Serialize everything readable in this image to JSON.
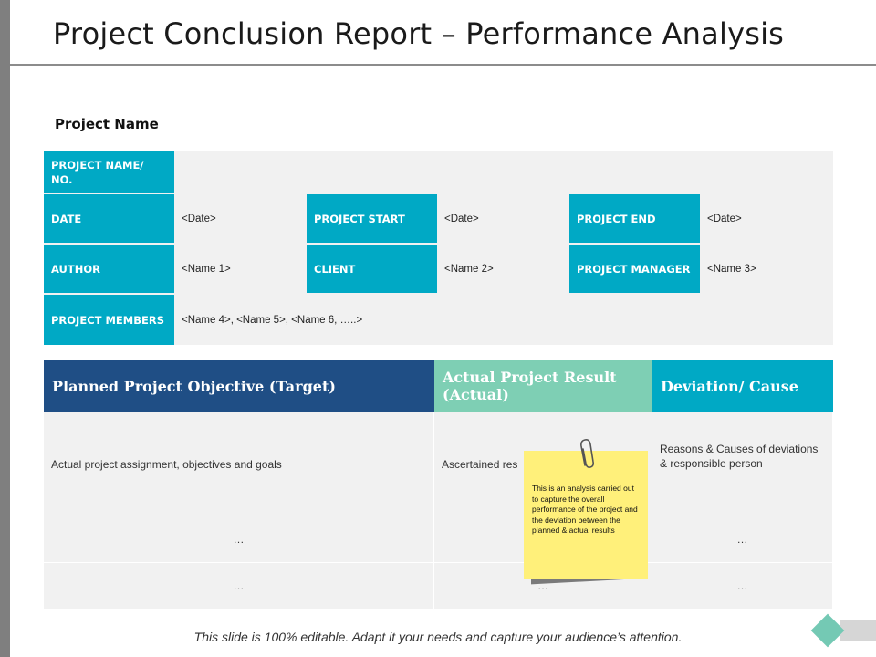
{
  "page": {
    "title": "Project Conclusion Report – Performance Analysis",
    "section_label": "Project Name",
    "footer": "This slide is 100% editable. Adapt it your needs and capture your audience’s attention."
  },
  "info": {
    "project_name_label": "PROJECT NAME/ NO.",
    "date_label": "DATE",
    "date_value": "<Date>",
    "project_start_label": "PROJECT START",
    "project_start_value": "<Date>",
    "project_end_label": "PROJECT END",
    "project_end_value": "<Date>",
    "author_label": "AUTHOR",
    "author_value": "<Name 1>",
    "client_label": "CLIENT",
    "client_value": "<Name 2>",
    "manager_label": "PROJECT MANAGER",
    "manager_value": "<Name 3>",
    "members_label": "PROJECT MEMBERS",
    "members_value": "<Name 4>, <Name 5>, <Name 6, …..>"
  },
  "table": {
    "headers": [
      "Planned Project Objective (Target)",
      "Actual Project Result (Actual)",
      "Deviation/  Cause"
    ],
    "header_colors": [
      "#1f4e85",
      "#7ecfb4",
      "#00a9c5"
    ],
    "row1": [
      "Actual project assignment, objectives and goals",
      "Ascertained res",
      "Reasons & Causes of deviations & responsible person"
    ],
    "row2": [
      "…",
      "",
      "…"
    ],
    "row3": [
      "…",
      "…",
      "…"
    ]
  },
  "sticky_note": {
    "text": "This is an analysis carried out to capture the overall performance of the project and the deviation between the planned & actual results",
    "icon": "paperclip-icon"
  }
}
